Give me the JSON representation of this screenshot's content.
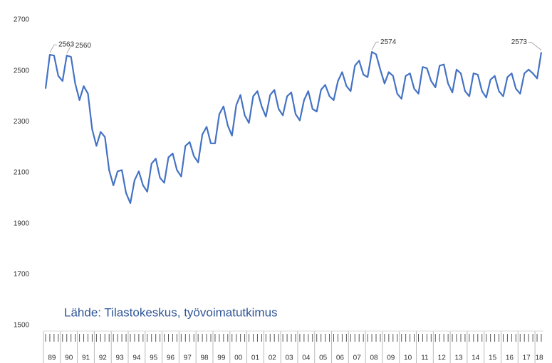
{
  "chart_data": {
    "type": "line",
    "annotation": "Lähde: Tilastokeskus, työvoimatutkimus",
    "categories": [
      "89",
      null,
      null,
      null,
      "90",
      null,
      null,
      null,
      "91",
      null,
      null,
      null,
      "92",
      null,
      null,
      null,
      "93",
      null,
      null,
      null,
      "94",
      null,
      null,
      null,
      "95",
      null,
      null,
      null,
      "96",
      null,
      null,
      null,
      "97",
      null,
      null,
      null,
      "98",
      null,
      null,
      null,
      "99",
      null,
      null,
      null,
      "00",
      null,
      null,
      null,
      "01",
      null,
      null,
      null,
      "02",
      null,
      null,
      null,
      "03",
      null,
      null,
      null,
      "04",
      null,
      null,
      null,
      "05",
      null,
      null,
      null,
      "06",
      null,
      null,
      null,
      "07",
      null,
      null,
      null,
      "08",
      null,
      null,
      null,
      "09",
      null,
      null,
      null,
      "10",
      null,
      null,
      null,
      "11",
      null,
      null,
      null,
      "12",
      null,
      null,
      null,
      "13",
      null,
      null,
      null,
      "14",
      null,
      null,
      null,
      "15",
      null,
      null,
      null,
      "16",
      null,
      null,
      null,
      "17",
      null,
      null,
      null,
      "18",
      null
    ],
    "series": [
      {
        "name": null,
        "color": "#4472c4",
        "values": [
          2430,
          2563,
          2560,
          2480,
          2460,
          2560,
          2555,
          2450,
          2385,
          2440,
          2410,
          2270,
          2205,
          2260,
          2240,
          2110,
          2050,
          2105,
          2110,
          2020,
          1980,
          2070,
          2105,
          2050,
          2025,
          2135,
          2155,
          2080,
          2060,
          2160,
          2175,
          2110,
          2085,
          2205,
          2220,
          2165,
          2140,
          2250,
          2280,
          2215,
          2215,
          2330,
          2360,
          2285,
          2245,
          2365,
          2405,
          2325,
          2295,
          2400,
          2420,
          2360,
          2320,
          2405,
          2425,
          2350,
          2325,
          2400,
          2415,
          2330,
          2305,
          2385,
          2420,
          2350,
          2340,
          2425,
          2445,
          2400,
          2385,
          2460,
          2495,
          2440,
          2420,
          2520,
          2540,
          2485,
          2475,
          2574,
          2565,
          2505,
          2450,
          2495,
          2480,
          2410,
          2390,
          2480,
          2490,
          2430,
          2410,
          2515,
          2510,
          2460,
          2435,
          2520,
          2525,
          2450,
          2415,
          2505,
          2490,
          2420,
          2400,
          2490,
          2485,
          2420,
          2395,
          2465,
          2480,
          2420,
          2400,
          2475,
          2490,
          2430,
          2410,
          2490,
          2505,
          2490,
          2470,
          2573
        ],
        "value_labels": [
          null,
          "2563",
          null,
          null,
          null,
          "2560",
          null,
          null,
          null,
          null,
          null,
          null,
          null,
          null,
          null,
          null,
          null,
          null,
          null,
          null,
          null,
          null,
          null,
          null,
          null,
          null,
          null,
          null,
          null,
          null,
          null,
          null,
          null,
          null,
          null,
          null,
          null,
          null,
          null,
          null,
          null,
          null,
          null,
          null,
          null,
          null,
          null,
          null,
          null,
          null,
          null,
          null,
          null,
          null,
          null,
          null,
          null,
          null,
          null,
          null,
          null,
          null,
          null,
          null,
          null,
          null,
          null,
          null,
          null,
          null,
          null,
          null,
          null,
          null,
          null,
          null,
          null,
          "2574",
          null,
          null,
          null,
          null,
          null,
          null,
          null,
          null,
          null,
          null,
          null,
          null,
          null,
          null,
          null,
          null,
          null,
          null,
          null,
          null,
          null,
          null,
          null,
          null,
          null,
          null,
          null,
          null,
          null,
          null,
          null,
          null,
          null,
          null,
          null,
          null,
          null,
          null,
          null,
          "2573"
        ]
      }
    ],
    "ylim": [
      1500,
      2700
    ],
    "yticks": [
      1500,
      1700,
      1900,
      2100,
      2300,
      2500,
      2700
    ],
    "grid": false
  }
}
